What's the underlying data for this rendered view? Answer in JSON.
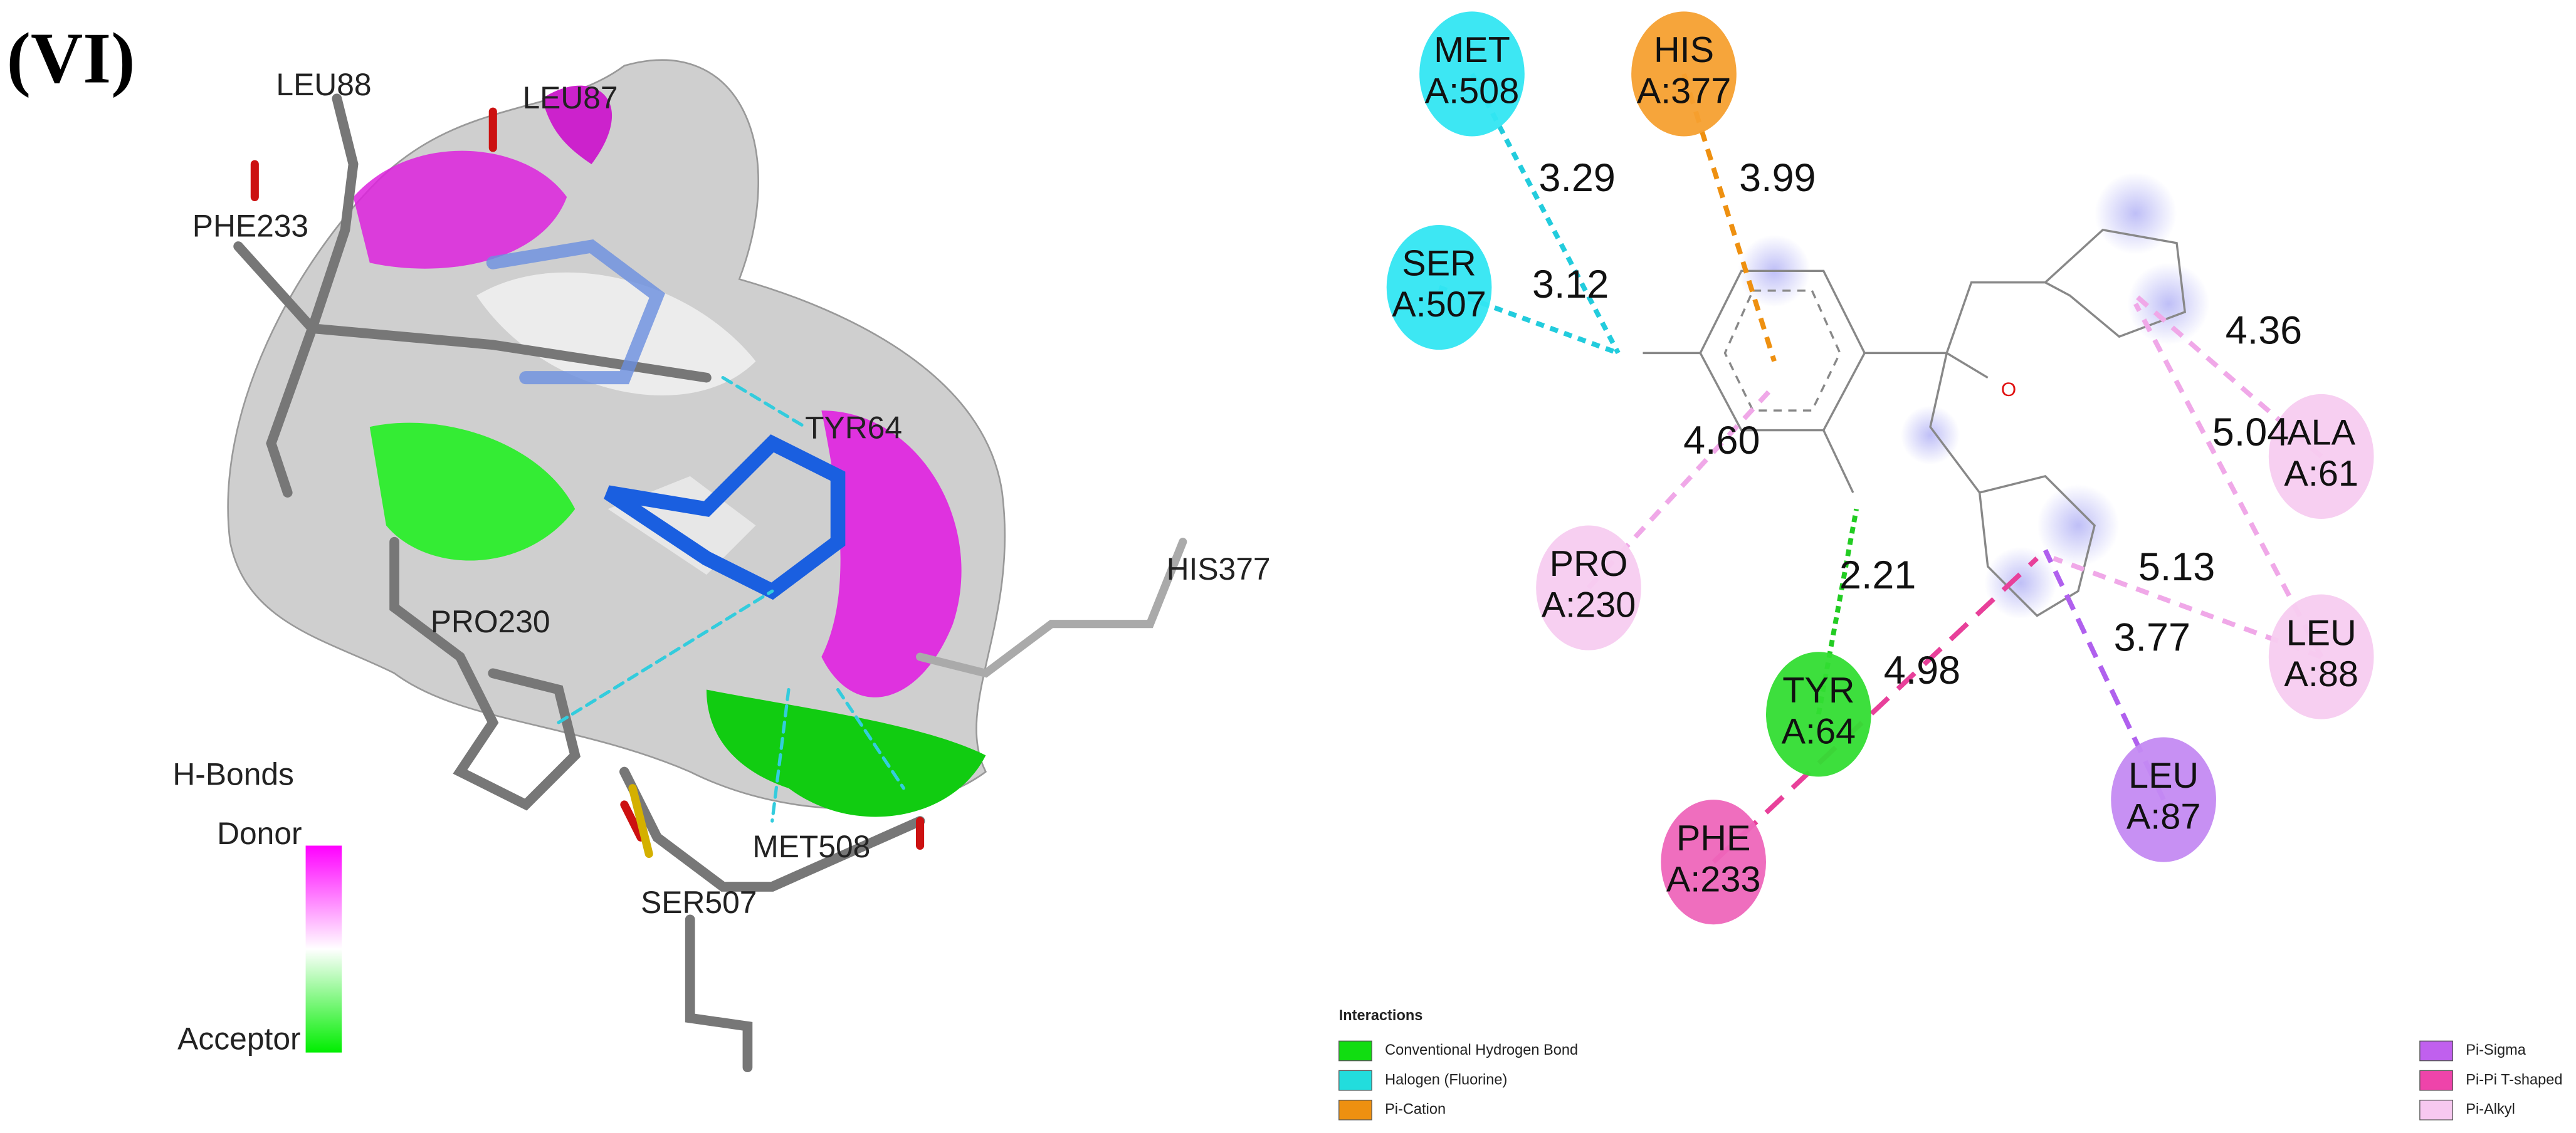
{
  "panel_label": "(VI)",
  "view_3d": {
    "residue_labels": [
      "LEU88",
      "LEU87",
      "PHE233",
      "TYR64",
      "HIS377",
      "PRO230",
      "MET508",
      "SER507"
    ],
    "hbond_legend": {
      "title": "H-Bonds",
      "top": "Donor",
      "bottom": "Acceptor"
    }
  },
  "diagram_2d": {
    "atom_label": "O",
    "residues": [
      {
        "name": "MET",
        "chain": "A:508"
      },
      {
        "name": "HIS",
        "chain": "A:377"
      },
      {
        "name": "SER",
        "chain": "A:507"
      },
      {
        "name": "PRO",
        "chain": "A:230"
      },
      {
        "name": "TYR",
        "chain": "A:64"
      },
      {
        "name": "PHE",
        "chain": "A:233"
      },
      {
        "name": "LEU",
        "chain": "A:87"
      },
      {
        "name": "ALA",
        "chain": "A:61"
      },
      {
        "name": "LEU",
        "chain": "A:88"
      }
    ],
    "distances": [
      "3.29",
      "3.99",
      "3.12",
      "4.60",
      "2.21",
      "4.98",
      "3.77",
      "4.36",
      "5.04",
      "5.13"
    ],
    "legend": {
      "title": "Interactions",
      "items": [
        "Conventional Hydrogen Bond",
        "Halogen (Fluorine)",
        "Pi-Cation",
        "Pi-Sigma",
        "Pi-Pi T-shaped",
        "Pi-Alkyl"
      ]
    }
  }
}
